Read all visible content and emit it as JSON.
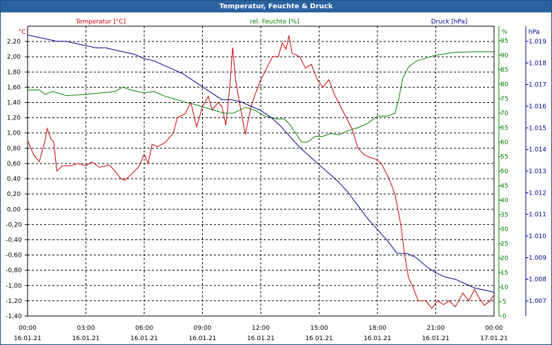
{
  "chart_data": {
    "type": "line",
    "title": "Temperatur, Feuchte & Druck",
    "x_tick_times": [
      "00:00",
      "03:00",
      "06:00",
      "09:00",
      "12:00",
      "15:00",
      "18:00",
      "21:00",
      "00:00"
    ],
    "x_tick_dates": [
      "16.01.21",
      "16.01.21",
      "16.01.21",
      "16.01.21",
      "16.01.21",
      "16.01.21",
      "16.01.21",
      "16.01.21",
      "17.01.21"
    ],
    "x_range_hours": [
      0,
      24
    ],
    "axes": {
      "temperature": {
        "unit": "°C",
        "label": "Temperatur [°C]",
        "color": "#cc0000",
        "min": -1.4,
        "max": 2.4,
        "ticks": [
          "2,20",
          "2,00",
          "1,80",
          "1,60",
          "1,40",
          "1,20",
          "1,00",
          "0,80",
          "0,60",
          "0,40",
          "0,20",
          "0,00",
          "-0,20",
          "-0,40",
          "-0,60",
          "-0,80",
          "-1,00",
          "-1,20",
          "-1,40"
        ]
      },
      "humidity": {
        "unit": "%",
        "label": "rel. Feuchte [%]",
        "color": "#008000",
        "min": 0,
        "max": 100,
        "ticks": [
          "95",
          "90",
          "85",
          "80",
          "75",
          "70",
          "65",
          "60",
          "55",
          "50",
          "45",
          "40",
          "35",
          "30",
          "25",
          "20",
          "15",
          "10",
          "5",
          "0"
        ]
      },
      "pressure": {
        "unit": "hPa",
        "label": "Druck [hPa]",
        "color": "#00008b",
        "min": 1.0063,
        "max": 1.0197,
        "ticks": [
          "1.019",
          "1.018",
          "1.017",
          "1.016",
          "1.015",
          "1.014",
          "1.013",
          "1.012",
          "1.011",
          "1.010",
          "1.009",
          "1.008",
          "1.007"
        ]
      }
    },
    "series": [
      {
        "name": "Temperatur",
        "axis": "temperature",
        "color": "#cc0000",
        "points": [
          [
            0,
            0.9
          ],
          [
            0.3,
            0.72
          ],
          [
            0.6,
            0.62
          ],
          [
            0.9,
            0.9
          ],
          [
            1.0,
            1.06
          ],
          [
            1.2,
            0.92
          ],
          [
            1.35,
            0.88
          ],
          [
            1.5,
            0.5
          ],
          [
            1.8,
            0.57
          ],
          [
            2.2,
            0.57
          ],
          [
            2.6,
            0.6
          ],
          [
            3.0,
            0.57
          ],
          [
            3.3,
            0.62
          ],
          [
            3.7,
            0.55
          ],
          [
            4.2,
            0.58
          ],
          [
            4.5,
            0.5
          ],
          [
            4.8,
            0.4
          ],
          [
            5.0,
            0.38
          ],
          [
            5.3,
            0.45
          ],
          [
            5.7,
            0.55
          ],
          [
            6.0,
            0.72
          ],
          [
            6.2,
            0.6
          ],
          [
            6.4,
            0.85
          ],
          [
            6.7,
            0.82
          ],
          [
            7.1,
            0.88
          ],
          [
            7.5,
            1.0
          ],
          [
            7.7,
            1.2
          ],
          [
            8.1,
            1.25
          ],
          [
            8.4,
            1.4
          ],
          [
            8.7,
            1.08
          ],
          [
            9.0,
            1.35
          ],
          [
            9.3,
            1.48
          ],
          [
            9.5,
            1.3
          ],
          [
            9.8,
            1.4
          ],
          [
            10.0,
            1.35
          ],
          [
            10.2,
            1.1
          ],
          [
            10.4,
            1.6
          ],
          [
            10.55,
            2.12
          ],
          [
            10.7,
            1.7
          ],
          [
            10.9,
            1.4
          ],
          [
            11.2,
            0.98
          ],
          [
            11.5,
            1.35
          ],
          [
            11.7,
            1.5
          ],
          [
            12.0,
            1.7
          ],
          [
            12.3,
            1.85
          ],
          [
            12.6,
            2.0
          ],
          [
            12.9,
            2.0
          ],
          [
            13.1,
            2.18
          ],
          [
            13.3,
            2.1
          ],
          [
            13.45,
            2.28
          ],
          [
            13.6,
            2.05
          ],
          [
            14.0,
            2.0
          ],
          [
            14.3,
            1.85
          ],
          [
            14.6,
            1.9
          ],
          [
            14.9,
            1.7
          ],
          [
            15.2,
            1.6
          ],
          [
            15.5,
            1.7
          ],
          [
            15.8,
            1.5
          ],
          [
            16.1,
            1.35
          ],
          [
            16.4,
            1.2
          ],
          [
            16.7,
            1.05
          ],
          [
            17.0,
            0.8
          ],
          [
            17.3,
            0.72
          ],
          [
            17.6,
            0.68
          ],
          [
            17.9,
            0.66
          ],
          [
            18.2,
            0.6
          ],
          [
            18.6,
            0.4
          ],
          [
            18.9,
            0.2
          ],
          [
            19.2,
            -0.2
          ],
          [
            19.4,
            -0.6
          ],
          [
            19.6,
            -0.9
          ],
          [
            19.8,
            -1.0
          ],
          [
            20.1,
            -1.2
          ],
          [
            20.5,
            -1.2
          ],
          [
            20.8,
            -1.3
          ],
          [
            21.1,
            -1.2
          ],
          [
            21.4,
            -1.25
          ],
          [
            21.7,
            -1.2
          ],
          [
            22.0,
            -1.28
          ],
          [
            22.4,
            -1.1
          ],
          [
            22.7,
            -1.2
          ],
          [
            23.0,
            -1.05
          ],
          [
            23.2,
            -1.15
          ],
          [
            23.5,
            -1.26
          ],
          [
            23.8,
            -1.2
          ],
          [
            24.0,
            -1.12
          ]
        ]
      },
      {
        "name": "rel. Feuchte",
        "axis": "humidity",
        "color": "#008000",
        "points": [
          [
            0,
            78
          ],
          [
            0.6,
            78
          ],
          [
            0.9,
            76.5
          ],
          [
            1.3,
            77.5
          ],
          [
            2.0,
            76
          ],
          [
            3.0,
            76.5
          ],
          [
            3.8,
            77
          ],
          [
            4.5,
            77.5
          ],
          [
            4.9,
            79
          ],
          [
            5.3,
            78
          ],
          [
            6.0,
            77
          ],
          [
            6.5,
            77.5
          ],
          [
            7.0,
            76
          ],
          [
            7.5,
            75
          ],
          [
            8.0,
            74
          ],
          [
            8.6,
            73
          ],
          [
            9.1,
            72
          ],
          [
            9.6,
            71
          ],
          [
            10.1,
            70
          ],
          [
            10.6,
            70
          ],
          [
            11.2,
            72
          ],
          [
            11.7,
            71
          ],
          [
            12.2,
            69
          ],
          [
            12.8,
            68
          ],
          [
            13.2,
            68
          ],
          [
            13.5,
            66
          ],
          [
            13.8,
            63
          ],
          [
            14.1,
            60
          ],
          [
            14.4,
            60
          ],
          [
            14.8,
            62
          ],
          [
            15.2,
            62
          ],
          [
            15.6,
            63
          ],
          [
            16.0,
            62.5
          ],
          [
            16.5,
            64
          ],
          [
            17.0,
            65
          ],
          [
            17.5,
            66.5
          ],
          [
            18.0,
            69
          ],
          [
            18.5,
            69
          ],
          [
            18.9,
            70
          ],
          [
            19.1,
            75
          ],
          [
            19.3,
            82
          ],
          [
            19.6,
            86
          ],
          [
            20.0,
            88
          ],
          [
            20.5,
            89
          ],
          [
            21.0,
            90
          ],
          [
            22.0,
            91
          ],
          [
            23.0,
            91.2
          ],
          [
            24.0,
            91.2
          ]
        ]
      },
      {
        "name": "Druck",
        "axis": "pressure",
        "color": "#00008b",
        "points": [
          [
            0,
            1.0193
          ],
          [
            0.5,
            1.0192
          ],
          [
            1.0,
            1.0191
          ],
          [
            1.5,
            1.019
          ],
          [
            2.0,
            1.019
          ],
          [
            2.5,
            1.0189
          ],
          [
            3.0,
            1.0188
          ],
          [
            3.5,
            1.0187
          ],
          [
            4.0,
            1.0187
          ],
          [
            4.5,
            1.0186
          ],
          [
            5.0,
            1.0185
          ],
          [
            5.5,
            1.0184
          ],
          [
            6.0,
            1.0182
          ],
          [
            6.5,
            1.0181
          ],
          [
            7.0,
            1.0179
          ],
          [
            7.5,
            1.0177
          ],
          [
            8.0,
            1.0175
          ],
          [
            8.5,
            1.0172
          ],
          [
            9.0,
            1.0169
          ],
          [
            9.5,
            1.0166
          ],
          [
            10.0,
            1.0163
          ],
          [
            10.5,
            1.0163
          ],
          [
            11.0,
            1.0162
          ],
          [
            11.5,
            1.016
          ],
          [
            12.0,
            1.0158
          ],
          [
            12.5,
            1.0155
          ],
          [
            13.0,
            1.0151
          ],
          [
            13.5,
            1.0146
          ],
          [
            14.0,
            1.0141
          ],
          [
            14.5,
            1.0137
          ],
          [
            15.0,
            1.0133
          ],
          [
            15.5,
            1.0129
          ],
          [
            16.0,
            1.0125
          ],
          [
            16.5,
            1.012
          ],
          [
            17.0,
            1.0114
          ],
          [
            17.5,
            1.0108
          ],
          [
            18.0,
            1.0103
          ],
          [
            18.5,
            1.0098
          ],
          [
            19.0,
            1.0092
          ],
          [
            19.5,
            1.0092
          ],
          [
            20.0,
            1.009
          ],
          [
            20.5,
            1.0086
          ],
          [
            21.0,
            1.0083
          ],
          [
            21.5,
            1.0081
          ],
          [
            22.0,
            1.008
          ],
          [
            22.5,
            1.0078
          ],
          [
            23.0,
            1.0076
          ],
          [
            23.5,
            1.0075
          ],
          [
            24.0,
            1.0074
          ]
        ]
      }
    ]
  }
}
